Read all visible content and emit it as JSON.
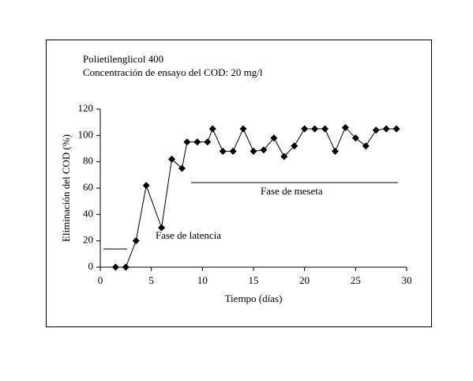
{
  "chart_data": {
    "type": "line",
    "title": "Polietilenglicol 400",
    "subtitle": "Concentración de ensayo del COD: 20 mg/l",
    "xlabel": "Tiempo (días)",
    "ylabel": "Eliminación del COD (%)",
    "annotations": [
      "Fase de latencia",
      "Fase de meseta"
    ],
    "x": [
      1.5,
      2.5,
      3.5,
      4.5,
      6,
      7,
      8,
      8.5,
      9.5,
      10.5,
      11,
      12,
      13,
      14,
      15,
      16,
      17,
      18,
      19,
      20,
      21,
      22,
      23,
      24,
      25,
      26,
      27,
      28,
      29
    ],
    "values": [
      0,
      0,
      20,
      62,
      30,
      82,
      75,
      95,
      95,
      95,
      105,
      88,
      88,
      105,
      88,
      89,
      98,
      84,
      92,
      105,
      105,
      105,
      88,
      106,
      98,
      92,
      104,
      105,
      105
    ],
    "color": "#000000",
    "xlim": [
      0,
      30
    ],
    "xticks": [
      0,
      5,
      10,
      15,
      20,
      25,
      30
    ],
    "ylim": [
      0,
      120
    ],
    "yticks": [
      0,
      20,
      40,
      60,
      80,
      100,
      120
    ]
  }
}
